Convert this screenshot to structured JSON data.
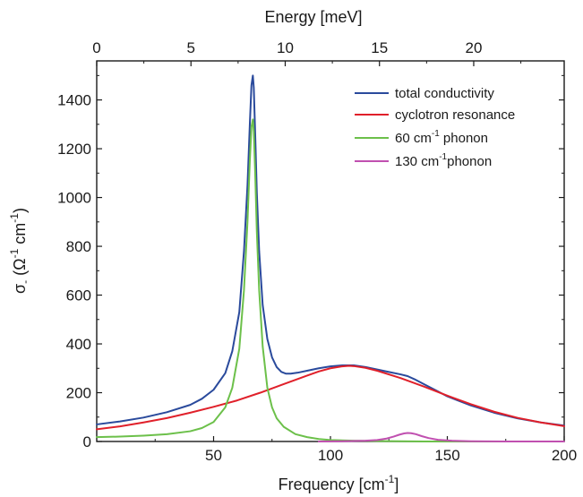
{
  "chart_data": {
    "type": "line",
    "xlabel": "Frequency [cm",
    "xlabel_sup": "-1",
    "xlabel_suffix": "]",
    "top_xlabel": "Energy [meV]",
    "ylabel_main": "σ",
    "ylabel_sub": "-",
    "ylabel_open": " (Ω",
    "ylabel_sup1": "-1",
    "ylabel_mid": " cm",
    "ylabel_sup2": "-1",
    "ylabel_close": ")",
    "xlim": [
      0,
      200
    ],
    "ylim": [
      0,
      1560
    ],
    "top_xlim": [
      0,
      24.8
    ],
    "x_ticks": [
      50,
      100,
      150,
      200
    ],
    "y_ticks": [
      0,
      200,
      400,
      600,
      800,
      1000,
      1200,
      1400
    ],
    "top_x_ticks": [
      0,
      5,
      10,
      15,
      20
    ],
    "grid": false,
    "legend_position": "top-right",
    "series": [
      {
        "name": "total conductivity",
        "color": "#2a4a9c",
        "x": [
          0,
          10,
          20,
          30,
          40,
          45,
          50,
          55,
          58,
          61,
          63,
          64.5,
          65.5,
          66.2,
          66.8,
          67.2,
          67.8,
          68.5,
          69.5,
          71,
          73,
          75,
          77,
          79,
          81,
          83,
          86,
          90,
          95,
          100,
          105,
          110,
          115,
          120,
          125,
          130,
          133,
          136,
          140,
          145,
          150,
          160,
          170,
          180,
          190,
          200
        ],
        "y": [
          70,
          82,
          98,
          120,
          150,
          175,
          212,
          280,
          370,
          530,
          780,
          1050,
          1300,
          1460,
          1500,
          1450,
          1260,
          1020,
          780,
          560,
          420,
          345,
          305,
          285,
          278,
          278,
          282,
          290,
          300,
          308,
          312,
          312,
          305,
          295,
          285,
          275,
          268,
          255,
          235,
          210,
          185,
          148,
          118,
          95,
          78,
          65
        ]
      },
      {
        "name": "cyclotron resonance",
        "color": "#e0202a",
        "x": [
          0,
          10,
          20,
          30,
          40,
          50,
          60,
          70,
          80,
          90,
          95,
          100,
          105,
          108,
          110,
          115,
          120,
          130,
          140,
          150,
          160,
          170,
          180,
          190,
          200
        ],
        "y": [
          50,
          62,
          78,
          96,
          118,
          142,
          168,
          200,
          235,
          270,
          287,
          300,
          308,
          310,
          309,
          302,
          290,
          260,
          225,
          188,
          153,
          122,
          97,
          78,
          63
        ]
      },
      {
        "name": "60 cm-1 phonon",
        "name_main": "60 cm",
        "name_sup": "-1",
        "name_rest": " phonon",
        "color": "#6cc04a",
        "x": [
          0,
          10,
          20,
          30,
          40,
          45,
          50,
          55,
          58,
          61,
          63,
          64.5,
          65.5,
          66.2,
          66.8,
          67.2,
          67.8,
          68.5,
          69.5,
          71,
          73,
          75,
          77,
          80,
          85,
          90,
          95,
          100,
          110,
          120,
          130,
          140,
          150,
          200
        ],
        "y": [
          18,
          20,
          24,
          30,
          42,
          55,
          80,
          140,
          220,
          380,
          620,
          900,
          1150,
          1290,
          1320,
          1270,
          1100,
          860,
          620,
          390,
          220,
          140,
          95,
          60,
          30,
          18,
          10,
          6,
          3,
          2,
          1,
          0,
          0,
          0
        ]
      },
      {
        "name": "130 cm-1phonon",
        "name_main": "130 cm",
        "name_sup": "-1",
        "name_rest": "phonon",
        "color": "#c050b0",
        "x": [
          95,
          105,
          115,
          120,
          124,
          127,
          129.5,
          131.5,
          133,
          134.5,
          136.5,
          139,
          142,
          146,
          152,
          160,
          175,
          200
        ],
        "y": [
          0,
          1,
          3,
          6,
          12,
          20,
          28,
          33,
          35,
          34,
          30,
          22,
          14,
          7,
          3,
          1,
          0,
          0
        ]
      }
    ]
  }
}
